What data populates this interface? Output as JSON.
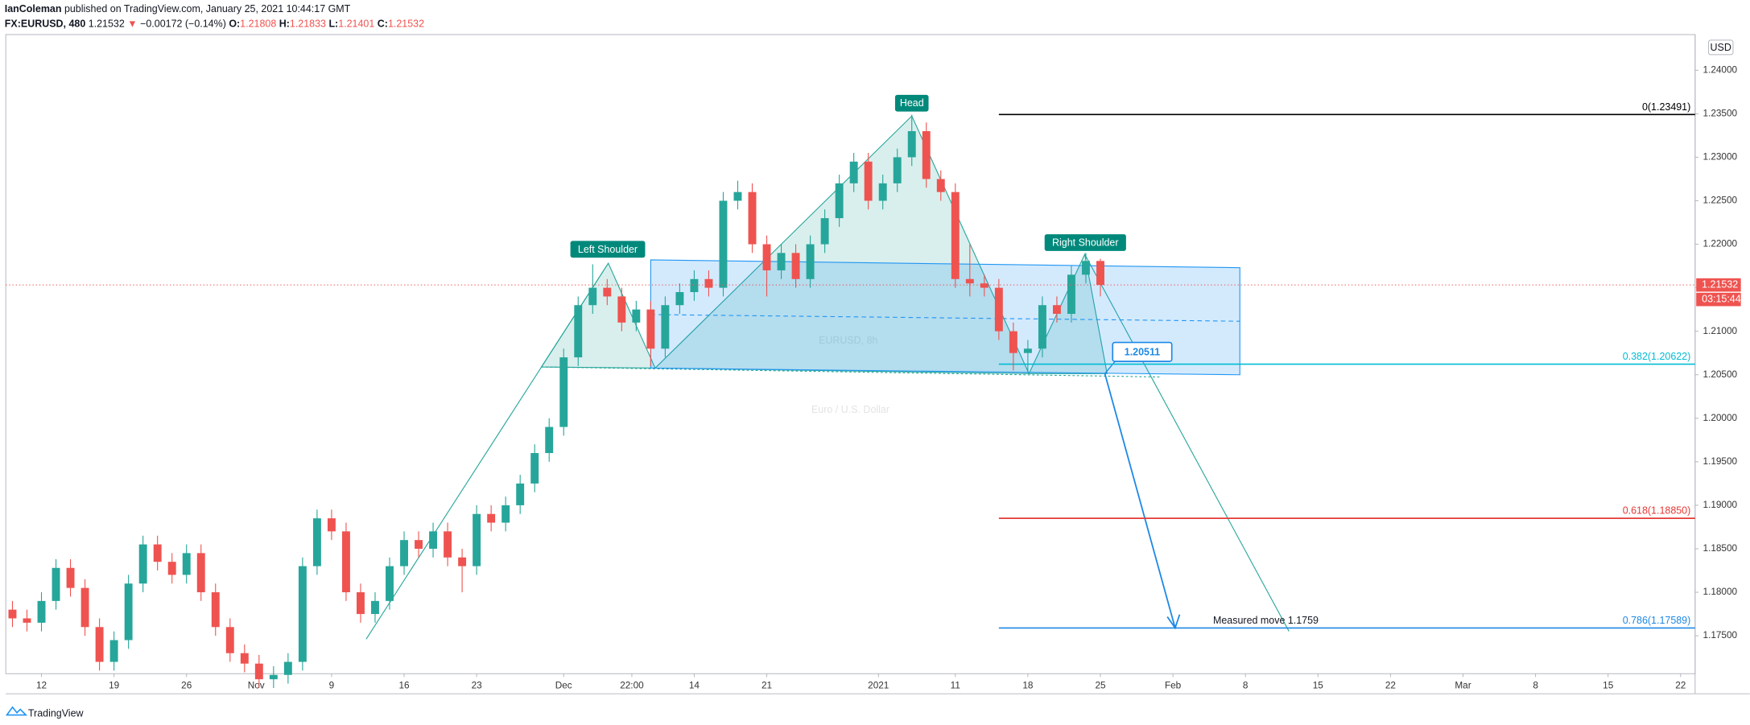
{
  "header": {
    "author": "IanColeman",
    "published": "published on TradingView.com, January 25, 2021 10:44:17 GMT",
    "symbol": "FX:EURUSD, 480",
    "price": "1.21532",
    "arrow": "▼",
    "change": "−0.00172 (−0.14%)",
    "ohlc": [
      {
        "label": "O:",
        "value": "1.21808"
      },
      {
        "label": "H:",
        "value": "1.21833"
      },
      {
        "label": "L:",
        "value": "1.21401"
      },
      {
        "label": "C:",
        "value": "1.21532"
      }
    ]
  },
  "chart_data": {
    "type": "candlestick",
    "watermark": "EURUSD, 8h",
    "watermark_sub": "Euro / U.S. Dollar",
    "currency": "USD",
    "countdown": "03:15:44",
    "up_color": "#26a69a",
    "down_color": "#ef5350",
    "x": [
      -2,
      -1,
      0,
      1,
      2,
      3,
      4,
      5,
      6,
      7,
      8,
      9,
      10,
      11,
      12,
      13,
      14,
      15,
      16,
      17,
      18,
      19,
      20,
      21,
      22,
      23,
      24,
      25,
      26,
      27,
      28,
      29,
      30,
      31,
      32,
      33,
      34,
      35,
      36,
      37,
      38,
      39,
      40,
      41,
      42,
      43,
      44,
      45,
      46,
      47,
      48,
      49,
      50,
      51,
      52,
      53,
      54,
      55,
      56,
      57,
      58,
      59,
      60,
      61,
      62,
      63,
      64,
      65,
      66,
      67,
      68,
      69,
      70,
      71,
      72,
      73
    ],
    "open": [
      1.178,
      1.177,
      1.1765,
      1.179,
      1.1828,
      1.1805,
      1.176,
      1.172,
      1.1745,
      1.181,
      1.1855,
      1.1835,
      1.182,
      1.1845,
      1.18,
      1.176,
      1.173,
      1.1718,
      1.17,
      1.1705,
      1.172,
      1.183,
      1.1885,
      1.187,
      1.18,
      1.1775,
      1.179,
      1.183,
      1.186,
      1.185,
      1.187,
      1.184,
      1.183,
      1.189,
      1.188,
      1.19,
      1.1925,
      1.196,
      1.199,
      1.207,
      1.213,
      1.215,
      1.214,
      1.211,
      1.2125,
      1.208,
      1.213,
      1.2145,
      1.216,
      1.215,
      1.225,
      1.226,
      1.22,
      1.217,
      1.219,
      1.216,
      1.22,
      1.223,
      1.227,
      1.2295,
      1.225,
      1.227,
      1.23,
      1.233,
      1.2275,
      1.226,
      1.216,
      1.2155,
      1.215,
      1.21,
      1.2075,
      1.208,
      1.213,
      1.212,
      1.2165,
      1.21808
    ],
    "high": [
      1.179,
      1.178,
      1.18,
      1.1838,
      1.1838,
      1.1815,
      1.177,
      1.1755,
      1.182,
      1.1865,
      1.1865,
      1.1845,
      1.1855,
      1.1855,
      1.181,
      1.177,
      1.174,
      1.1728,
      1.1715,
      1.173,
      1.184,
      1.1895,
      1.1895,
      1.188,
      1.181,
      1.18,
      1.184,
      1.187,
      1.187,
      1.188,
      1.188,
      1.185,
      1.19,
      1.19,
      1.191,
      1.1935,
      1.197,
      1.2,
      1.208,
      1.214,
      1.2177,
      1.216,
      1.215,
      1.2135,
      1.2135,
      1.214,
      1.2155,
      1.217,
      1.217,
      1.226,
      1.2273,
      1.227,
      1.221,
      1.22,
      1.22,
      1.221,
      1.224,
      1.228,
      1.2305,
      1.2305,
      1.228,
      1.231,
      1.2349,
      1.234,
      1.2285,
      1.227,
      1.22,
      1.2165,
      1.216,
      1.211,
      1.209,
      1.214,
      1.214,
      1.2175,
      1.219,
      1.21833
    ],
    "low": [
      1.176,
      1.1755,
      1.1755,
      1.178,
      1.1795,
      1.175,
      1.171,
      1.171,
      1.1735,
      1.18,
      1.1825,
      1.181,
      1.181,
      1.179,
      1.175,
      1.172,
      1.1708,
      1.169,
      1.169,
      1.1695,
      1.171,
      1.182,
      1.186,
      1.179,
      1.1765,
      1.1765,
      1.178,
      1.182,
      1.184,
      1.184,
      1.183,
      1.18,
      1.182,
      1.187,
      1.187,
      1.189,
      1.1915,
      1.195,
      1.198,
      1.206,
      1.212,
      1.213,
      1.21,
      1.21,
      1.206,
      1.207,
      1.212,
      1.2135,
      1.214,
      1.214,
      1.224,
      1.219,
      1.214,
      1.216,
      1.215,
      1.215,
      1.219,
      1.222,
      1.226,
      1.224,
      1.224,
      1.226,
      1.229,
      1.2265,
      1.225,
      1.215,
      1.214,
      1.214,
      1.209,
      1.2055,
      1.2053,
      1.207,
      1.211,
      1.211,
      1.2155,
      1.21401
    ],
    "close": [
      1.177,
      1.1765,
      1.179,
      1.1828,
      1.1805,
      1.176,
      1.172,
      1.1745,
      1.181,
      1.1855,
      1.1835,
      1.182,
      1.1845,
      1.18,
      1.176,
      1.173,
      1.1718,
      1.17,
      1.1705,
      1.172,
      1.183,
      1.1885,
      1.187,
      1.18,
      1.1775,
      1.179,
      1.183,
      1.186,
      1.185,
      1.187,
      1.184,
      1.183,
      1.189,
      1.188,
      1.19,
      1.1925,
      1.196,
      1.199,
      1.207,
      1.213,
      1.215,
      1.214,
      1.211,
      1.2125,
      1.208,
      1.213,
      1.2145,
      1.216,
      1.215,
      1.225,
      1.226,
      1.22,
      1.217,
      1.219,
      1.216,
      1.22,
      1.223,
      1.227,
      1.2295,
      1.225,
      1.227,
      1.23,
      1.233,
      1.2275,
      1.226,
      1.216,
      1.2155,
      1.215,
      1.21,
      1.2075,
      1.208,
      1.213,
      1.212,
      1.2165,
      1.21808,
      1.21532
    ],
    "xlim": [
      -2.46,
      114
    ],
    "ylim": [
      1.17064,
      1.2441
    ],
    "xticks": [
      {
        "value": 0,
        "label": "12"
      },
      {
        "value": 5,
        "label": "19"
      },
      {
        "value": 10,
        "label": "26"
      },
      {
        "value": 14.8,
        "label": "Nov"
      },
      {
        "value": 20,
        "label": "9"
      },
      {
        "value": 25,
        "label": "16"
      },
      {
        "value": 30,
        "label": "23"
      },
      {
        "value": 36,
        "label": "Dec"
      },
      {
        "value": 40.7,
        "label": "22:00"
      },
      {
        "value": 45,
        "label": "14"
      },
      {
        "value": 50,
        "label": "21"
      },
      {
        "value": 57.7,
        "label": "2021"
      },
      {
        "value": 63,
        "label": "11"
      },
      {
        "value": 68,
        "label": "18"
      },
      {
        "value": 73,
        "label": "25"
      },
      {
        "value": 78,
        "label": "Feb"
      },
      {
        "value": 83,
        "label": "8"
      },
      {
        "value": 88,
        "label": "15"
      },
      {
        "value": 93,
        "label": "22"
      },
      {
        "value": 98,
        "label": "Mar"
      },
      {
        "value": 103,
        "label": "8"
      },
      {
        "value": 108,
        "label": "15"
      },
      {
        "value": 113,
        "label": "22"
      }
    ],
    "yticks": [
      {
        "value": 1.24,
        "label": "1.24000"
      },
      {
        "value": 1.235,
        "label": "1.23500"
      },
      {
        "value": 1.23,
        "label": "1.23000"
      },
      {
        "value": 1.225,
        "label": "1.22500"
      },
      {
        "value": 1.22,
        "label": "1.22000"
      },
      {
        "value": 1.215,
        "label": "1.21500"
      },
      {
        "value": 1.21,
        "label": "1.21000"
      },
      {
        "value": 1.205,
        "label": "1.20500"
      },
      {
        "value": 1.2,
        "label": "1.20000"
      },
      {
        "value": 1.195,
        "label": "1.19500"
      },
      {
        "value": 1.19,
        "label": "1.19000"
      },
      {
        "value": 1.185,
        "label": "1.18500"
      },
      {
        "value": 1.18,
        "label": "1.18000"
      },
      {
        "value": 1.175,
        "label": "1.17500"
      }
    ],
    "grid": false,
    "fib_levels": [
      {
        "value": 1.23491,
        "label": "0(1.23491)",
        "color": "#000000"
      },
      {
        "value": 1.20622,
        "label": "0.382(1.20622)",
        "color": "#00bcd4"
      },
      {
        "value": 1.1885,
        "label": "0.618(1.18850)",
        "color": "#e53935"
      },
      {
        "value": 1.17589,
        "label": "0.786(1.17589)",
        "color": "#1e88e5"
      }
    ],
    "annotations": {
      "left_shoulder": "Left Shoulder",
      "head": "Head",
      "right_shoulder": "Right Shoulder",
      "neckline_price": "1.20511",
      "measured_move": "Measured move 1.1759"
    }
  },
  "footer": {
    "brand": "TradingView"
  }
}
